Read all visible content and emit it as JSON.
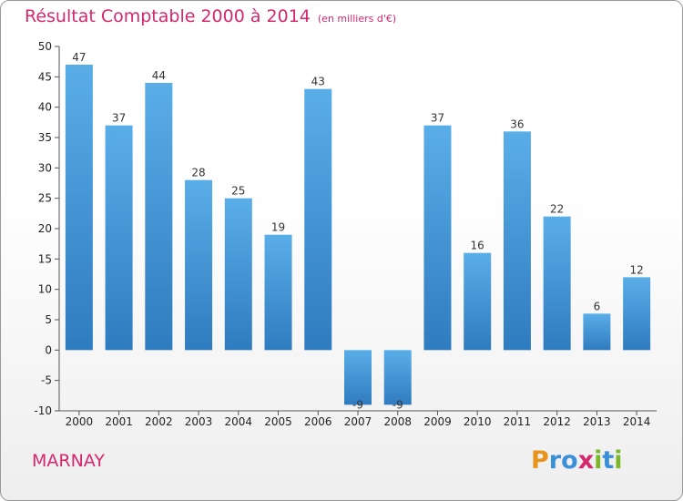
{
  "title": "Résultat Comptable 2000 à 2014",
  "subtitle": "(en milliers d'€)",
  "town": "MARNAY",
  "logo": {
    "letters": [
      "P",
      "r",
      "o",
      "x",
      "i",
      "t",
      "i"
    ],
    "colors": [
      "#e8931b",
      "#3a8fd8",
      "#3a8fd8",
      "#d6286e",
      "#7ab829",
      "#3a8fd8",
      "#7ab829"
    ]
  },
  "colors": {
    "bar_light": "#5aaee8",
    "bar_dark": "#2f7bbf",
    "title": "#d6286e"
  },
  "chart_data": {
    "type": "bar",
    "title": "Résultat Comptable 2000 à 2014",
    "ylabel": "",
    "xlabel": "",
    "categories": [
      "2000",
      "2001",
      "2002",
      "2003",
      "2004",
      "2005",
      "2006",
      "2007",
      "2008",
      "2009",
      "2010",
      "2011",
      "2012",
      "2013",
      "2014"
    ],
    "values": [
      47,
      37,
      44,
      28,
      25,
      19,
      43,
      -9,
      -9,
      37,
      16,
      36,
      22,
      6,
      12
    ],
    "ylim": [
      -10,
      50
    ],
    "yticks": [
      -10,
      -5,
      0,
      5,
      10,
      15,
      20,
      25,
      30,
      35,
      40,
      45,
      50
    ],
    "grid": false
  }
}
